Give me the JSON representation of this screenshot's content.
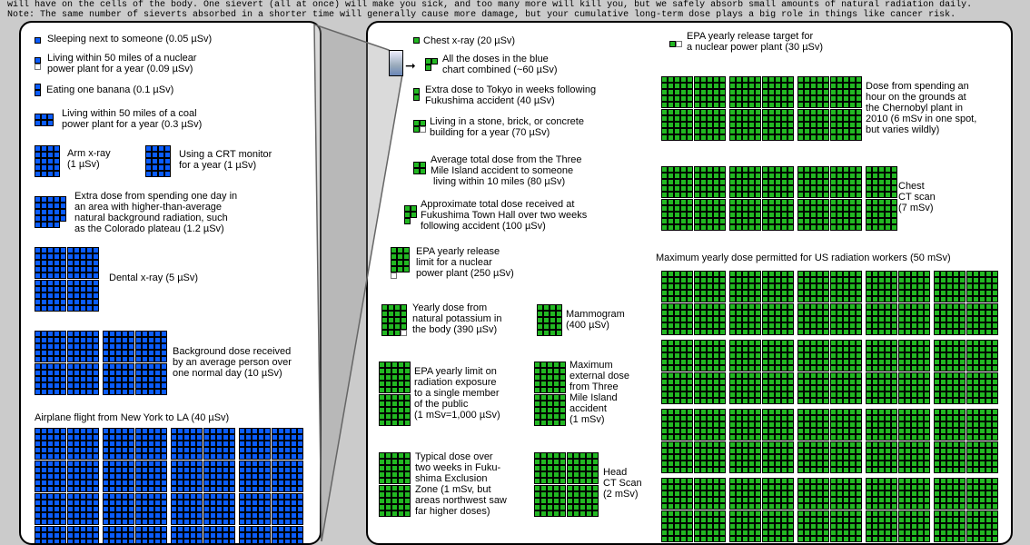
{
  "header": {
    "line1": "will have on the cells of the body. One sievert (all at once) will make you sick, and too many more will kill you, but we safely absorb small amounts of natural radiation daily.",
    "line2": "Note: The same number of sieverts absorbed in a shorter time will generally cause more damage, but your cumulative long-term dose plays a big role in things like cancer risk."
  },
  "chart_data": {
    "type": "unit-square chart",
    "colors": {
      "blue_square": "#0a5cff",
      "green_square": "#22b822",
      "background": "#cbcbcb"
    },
    "blue_square_value_usv": 0.05,
    "green_square_value_usv": 20,
    "blue": [
      {
        "text": "Sleeping next to someone (0.05 µSv)",
        "dose_usv": 0.05
      },
      {
        "text": "Living within 50 miles of a nuclear\npower plant for a year (0.09 µSv)",
        "dose_usv": 0.09
      },
      {
        "text": "Eating one banana (0.1 µSv)",
        "dose_usv": 0.1
      },
      {
        "text": "Living within 50 miles of a coal\npower plant for a year (0.3 µSv)",
        "dose_usv": 0.3
      },
      {
        "text": "Arm x-ray\n(1 µSv)",
        "dose_usv": 1
      },
      {
        "text": "Using a CRT monitor\nfor a year (1 µSv)",
        "dose_usv": 1
      },
      {
        "text": "Extra dose from spending one day in\nan area with higher-than-average\nnatural background radiation, such\nas the Colorado plateau (1.2 µSv)",
        "dose_usv": 1.2
      },
      {
        "text": "Dental x-ray (5 µSv)",
        "dose_usv": 5
      },
      {
        "text": "Background dose received\nby an average person over\none normal day (10 µSv)",
        "dose_usv": 10
      },
      {
        "text": "Airplane flight from New York to LA (40 µSv)",
        "dose_usv": 40
      }
    ],
    "green": [
      {
        "text": "Chest x-ray (20 µSv)",
        "dose_usv": 20
      },
      {
        "text": "All the doses in the blue\nchart combined (~60 µSv)",
        "dose_usv": 60
      },
      {
        "text": "Extra dose to Tokyo in weeks following\nFukushima accident (40 µSv)",
        "dose_usv": 40
      },
      {
        "text": "Living in a stone, brick, or concrete\nbuilding for a year (70 µSv)",
        "dose_usv": 70
      },
      {
        "text": "Average total dose from the Three\nMile Island accident to someone\n living within 10 miles (80 µSv)",
        "dose_usv": 80
      },
      {
        "text": "Approximate total dose received at\nFukushima Town Hall over two weeks\nfollowing accident (100 µSv)",
        "dose_usv": 100
      },
      {
        "text": "EPA yearly release\nlimit for a nuclear\npower plant (250 µSv)",
        "dose_usv": 250
      },
      {
        "text": "Yearly dose from\nnatural potassium in\nthe body (390 µSv)",
        "dose_usv": 390
      },
      {
        "text": "Mammogram\n(400 µSv)",
        "dose_usv": 400
      },
      {
        "text": "EPA yearly limit on\nradiation exposure\nto a single member\nof the public\n(1 mSv=1,000 µSv)",
        "dose_usv": 1000
      },
      {
        "text": "Maximum\nexternal dose\nfrom Three\nMile Island\naccident\n(1 mSv)",
        "dose_usv": 1000
      },
      {
        "text": "Typical dose over\ntwo weeks in Fuku-\nshima Exclusion\nZone (1 mSv, but\nareas northwest saw\nfar higher doses)",
        "dose_usv": 1000
      },
      {
        "text": "Head\nCT Scan\n(2 mSv)",
        "dose_usv": 2000
      },
      {
        "text": "EPA yearly release target for\na nuclear power plant (30 µSv)",
        "dose_usv": 30
      },
      {
        "text": "Dose from spending an\nhour on the grounds at\nthe Chernobyl plant in\n2010 (6 mSv in one spot,\nbut varies wildly)",
        "dose_usv": 6000
      },
      {
        "text": "Chest\nCT scan\n(7 mSv)",
        "dose_usv": 7000
      },
      {
        "text": "Maximum yearly dose permitted for US radiation workers (50 mSv)",
        "dose_usv": 50000
      }
    ]
  }
}
